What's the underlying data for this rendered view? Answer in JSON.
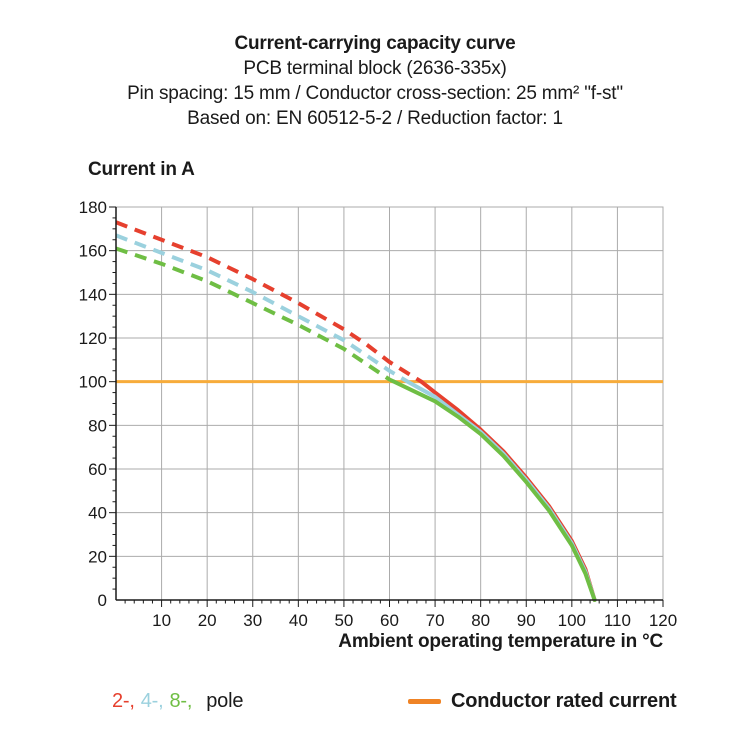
{
  "title": {
    "line1": "Current-carrying capacity curve",
    "line2": "PCB terminal block (2636-335x)",
    "line3": "Pin spacing: 15 mm / Conductor cross-section: 25 mm² \"f-st\"",
    "line4": "Based on: EN 60512-5-2 / Reduction factor: 1"
  },
  "chart_data": {
    "type": "line",
    "title": "Current-carrying capacity curve",
    "xlabel": "Ambient operating temperature in °C",
    "ylabel": "Current in A",
    "xlim": [
      0,
      120
    ],
    "ylim": [
      0,
      180
    ],
    "x_ticks": [
      10,
      20,
      30,
      40,
      50,
      60,
      70,
      80,
      90,
      100,
      110,
      120
    ],
    "y_ticks": [
      0,
      20,
      40,
      60,
      80,
      100,
      120,
      140,
      160,
      180
    ],
    "x_minor_step": 2,
    "y_minor_step": 5,
    "grid": true,
    "grid_color": "#ABABAB",
    "axis_color": "#1A1A1A",
    "legend_position": "bottom",
    "series": [
      {
        "name": "2-pole",
        "color": "#E6402E",
        "style": "dashed-then-solid",
        "solid_from_x": 67,
        "points": [
          [
            0,
            173
          ],
          [
            10,
            165
          ],
          [
            20,
            157
          ],
          [
            30,
            147
          ],
          [
            40,
            136
          ],
          [
            50,
            124
          ],
          [
            55,
            117
          ],
          [
            60,
            109
          ],
          [
            67,
            100
          ],
          [
            70,
            95
          ],
          [
            75,
            87
          ],
          [
            80,
            78
          ],
          [
            85,
            68
          ],
          [
            90,
            56
          ],
          [
            95,
            43
          ],
          [
            100,
            27
          ],
          [
            103,
            14
          ],
          [
            105,
            0
          ]
        ]
      },
      {
        "name": "4-pole",
        "color": "#9BD1DE",
        "style": "dashed-then-solid",
        "solid_from_x": 64,
        "points": [
          [
            0,
            167
          ],
          [
            10,
            159
          ],
          [
            20,
            151
          ],
          [
            30,
            141
          ],
          [
            40,
            130
          ],
          [
            50,
            119
          ],
          [
            55,
            112
          ],
          [
            60,
            105
          ],
          [
            64,
            100
          ],
          [
            70,
            93
          ],
          [
            75,
            85
          ],
          [
            80,
            77
          ],
          [
            85,
            67
          ],
          [
            90,
            55
          ],
          [
            95,
            42
          ],
          [
            100,
            26
          ],
          [
            103,
            13
          ],
          [
            105,
            0
          ]
        ]
      },
      {
        "name": "8-pole",
        "color": "#6FBE44",
        "style": "dashed-then-solid",
        "solid_from_x": 61,
        "points": [
          [
            0,
            161
          ],
          [
            10,
            154
          ],
          [
            20,
            146
          ],
          [
            30,
            136
          ],
          [
            40,
            126
          ],
          [
            50,
            115
          ],
          [
            55,
            108
          ],
          [
            60,
            101
          ],
          [
            61,
            100
          ],
          [
            65,
            96
          ],
          [
            70,
            91
          ],
          [
            75,
            84
          ],
          [
            80,
            76
          ],
          [
            85,
            66
          ],
          [
            90,
            54
          ],
          [
            95,
            41
          ],
          [
            100,
            25
          ],
          [
            103,
            12
          ],
          [
            105,
            0
          ]
        ]
      }
    ],
    "reference_line": {
      "label": "Conductor rated current",
      "y": 100,
      "color": "#F7AC3B"
    }
  },
  "legend": {
    "pole_items": [
      {
        "label": "2-,"
      },
      {
        "label": "4-,"
      },
      {
        "label": "8-,"
      }
    ],
    "pole_suffix": "pole",
    "rated_label": "Conductor rated current",
    "rated_color": "#EF8325"
  }
}
